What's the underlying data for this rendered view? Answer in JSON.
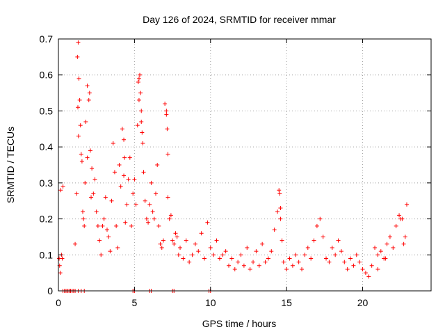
{
  "chart_data": {
    "type": "scatter",
    "title": "Day 126 of 2024, SRMTID for receiver mmar",
    "xlabel": "GPS time / hours",
    "ylabel": "SRMTID / TECUs",
    "xlim": [
      0,
      24.5
    ],
    "ylim": [
      0,
      0.7
    ],
    "xticks": [
      0,
      5,
      10,
      15,
      20
    ],
    "yticks": [
      0,
      0.1,
      0.2,
      0.3,
      0.4,
      0.5,
      0.6,
      0.7
    ],
    "xtick_labels": [
      "0",
      "5",
      "10",
      "15",
      "20"
    ],
    "ytick_labels": [
      "0",
      "0.1",
      "0.2",
      "0.3",
      "0.4",
      "0.5",
      "0.6",
      "0.7"
    ],
    "grid": true,
    "marker": "+",
    "color": "#ff0000",
    "series": [
      {
        "name": "SRMTID",
        "x": [
          0.05,
          0.08,
          0.12,
          0.15,
          0.2,
          0.25,
          0.3,
          0.4,
          0.5,
          0.6,
          0.7,
          0.8,
          0.9,
          1.0,
          1.1,
          1.2,
          1.3,
          1.35,
          1.4,
          1.45,
          1.5,
          1.55,
          1.6,
          1.65,
          1.7,
          1.75,
          1.8,
          1.9,
          2.0,
          2.1,
          2.2,
          2.3,
          2.4,
          2.5,
          2.6,
          2.7,
          2.8,
          2.9,
          3.0,
          3.1,
          3.2,
          3.3,
          3.4,
          3.5,
          3.6,
          3.7,
          3.8,
          3.9,
          4.0,
          4.1,
          4.2,
          4.3,
          4.4,
          4.5,
          4.6,
          4.7,
          4.8,
          4.9,
          5.0,
          5.1,
          5.2,
          5.3,
          5.35,
          5.4,
          5.45,
          5.5,
          5.6,
          5.7,
          5.8,
          5.9,
          6.0,
          6.1,
          6.2,
          6.3,
          6.4,
          6.5,
          6.6,
          6.7,
          6.8,
          6.9,
          7.0,
          7.1,
          7.2,
          7.3,
          7.4,
          7.5,
          7.6,
          7.7,
          7.8,
          7.9,
          8.0,
          8.2,
          8.4,
          8.6,
          8.8,
          9.0,
          9.2,
          9.4,
          9.6,
          9.8,
          10.0,
          10.2,
          10.4,
          10.6,
          10.8,
          11.0,
          11.2,
          11.4,
          11.6,
          11.8,
          12.0,
          12.2,
          12.4,
          12.6,
          12.8,
          13.0,
          13.2,
          13.4,
          13.6,
          13.8,
          14.0,
          14.2,
          14.4,
          14.5,
          14.6,
          14.7,
          14.8,
          15.0,
          15.2,
          15.4,
          15.6,
          15.8,
          16.0,
          16.2,
          16.4,
          16.6,
          16.8,
          17.0,
          17.2,
          17.4,
          17.6,
          17.8,
          18.0,
          18.2,
          18.4,
          18.6,
          18.8,
          19.0,
          19.2,
          19.4,
          19.6,
          19.8,
          20.0,
          20.2,
          20.4,
          20.6,
          20.8,
          21.0,
          21.2,
          21.4,
          21.6,
          21.8,
          22.0,
          22.2,
          22.4,
          22.6,
          22.8,
          22.9,
          1.25,
          1.28,
          1.32,
          1.9,
          2.05,
          2.15,
          4.3,
          4.35,
          5.25,
          5.3,
          5.45,
          5.55,
          7.1,
          7.15,
          7.2,
          14.55,
          14.6,
          22.5,
          22.7,
          0.3,
          0.6,
          0.7,
          0.9,
          1.1,
          1.3,
          1.5,
          1.7,
          4.9,
          5.0,
          6.0,
          6.1,
          7.5,
          7.6,
          9.9,
          10.0,
          21.0,
          21.5
        ],
        "y": [
          0.09,
          0.07,
          0.05,
          0.28,
          0.1,
          0.09,
          0.0,
          0.0,
          0.0,
          0.0,
          0.0,
          0.0,
          0.0,
          0.0,
          0.13,
          0.27,
          0.69,
          0.59,
          0.53,
          0.46,
          0.38,
          0.36,
          0.22,
          0.2,
          0.18,
          0.3,
          0.47,
          0.57,
          0.53,
          0.39,
          0.34,
          0.27,
          0.31,
          0.22,
          0.18,
          0.14,
          0.1,
          0.18,
          0.2,
          0.26,
          0.17,
          0.15,
          0.11,
          0.25,
          0.41,
          0.33,
          0.18,
          0.12,
          0.35,
          0.29,
          0.45,
          0.32,
          0.19,
          0.24,
          0.31,
          0.37,
          0.18,
          0.27,
          0.31,
          0.24,
          0.46,
          0.59,
          0.6,
          0.55,
          0.5,
          0.44,
          0.33,
          0.25,
          0.2,
          0.19,
          0.24,
          0.3,
          0.22,
          0.2,
          0.27,
          0.35,
          0.18,
          0.13,
          0.12,
          0.14,
          0.52,
          0.49,
          0.26,
          0.2,
          0.21,
          0.14,
          0.13,
          0.16,
          0.15,
          0.1,
          0.12,
          0.09,
          0.14,
          0.08,
          0.1,
          0.13,
          0.11,
          0.16,
          0.09,
          0.19,
          0.12,
          0.1,
          0.14,
          0.09,
          0.1,
          0.11,
          0.07,
          0.09,
          0.06,
          0.08,
          0.1,
          0.07,
          0.12,
          0.06,
          0.08,
          0.11,
          0.07,
          0.13,
          0.08,
          0.09,
          0.11,
          0.17,
          0.22,
          0.28,
          0.2,
          0.14,
          0.08,
          0.06,
          0.09,
          0.07,
          0.1,
          0.08,
          0.06,
          0.1,
          0.12,
          0.09,
          0.14,
          0.18,
          0.2,
          0.15,
          0.09,
          0.08,
          0.12,
          0.1,
          0.14,
          0.11,
          0.08,
          0.06,
          0.09,
          0.07,
          0.1,
          0.08,
          0.06,
          0.05,
          0.04,
          0.07,
          0.12,
          0.1,
          0.11,
          0.09,
          0.13,
          0.15,
          0.12,
          0.18,
          0.21,
          0.2,
          0.15,
          0.24,
          0.65,
          0.51,
          0.43,
          0.37,
          0.55,
          0.26,
          0.42,
          0.37,
          0.58,
          0.53,
          0.47,
          0.41,
          0.5,
          0.45,
          0.38,
          0.27,
          0.23,
          0.2,
          0.13,
          0.29,
          0.0,
          0.0,
          0.0,
          0.0,
          0.0,
          0.0,
          0.0,
          0.0,
          0.0,
          0.0,
          0.0,
          0.0,
          0.0,
          0.0,
          0.0,
          0.06,
          0.09
        ]
      }
    ]
  }
}
